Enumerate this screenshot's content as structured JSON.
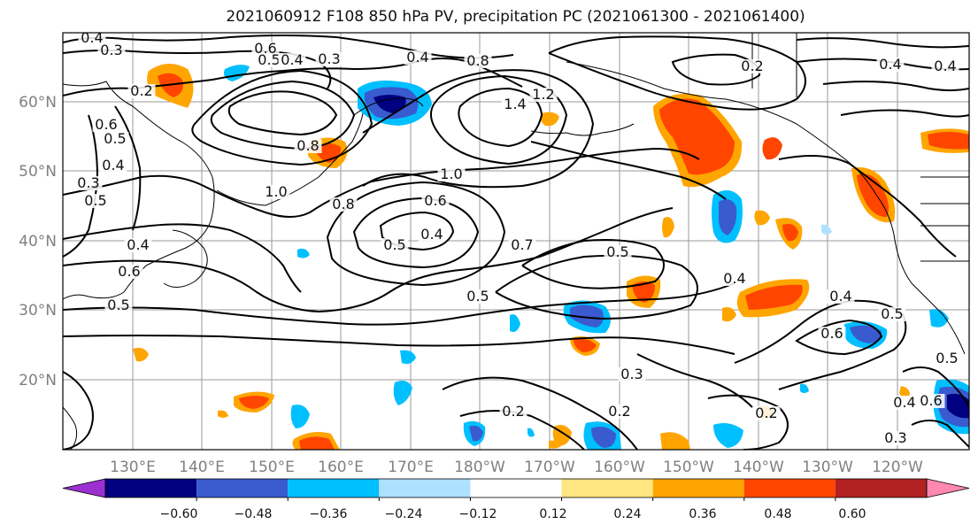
{
  "title": "2021060912 F108 850 hPa PV, precipitation PC (2021061300 - 2021061400)",
  "lat_labels": [
    "60°N",
    "50°N",
    "40°N",
    "30°N",
    "20°N"
  ],
  "lon_labels": [
    "130°E",
    "140°E",
    "150°E",
    "160°E",
    "170°E",
    "180°W",
    "170°W",
    "160°W",
    "150°W",
    "140°W",
    "130°W",
    "120°W"
  ],
  "contour_labels": [
    "0.4",
    "0.3",
    "0.6",
    "0.5",
    "0.4",
    "0.3",
    "0.4",
    "0.8",
    "1.2",
    "1.4",
    "0.2",
    "0.8",
    "0.6",
    "0.5",
    "0.4",
    "0.3",
    "0.2",
    "0.5",
    "0.5",
    "0.4",
    "0.6",
    "1.0",
    "0.8",
    "1.0",
    "0.6",
    "0.5",
    "0.4",
    "0.7",
    "0.5",
    "0.4",
    "0.5",
    "0.4",
    "0.6",
    "0.3",
    "0.2",
    "0.2",
    "0.2",
    "0.5",
    "0.4",
    "0.4",
    "0.5",
    "0.6",
    "0.4",
    "0.3"
  ],
  "colorbar": {
    "colors": [
      "#9b30d0",
      "#000080",
      "#3a5bcf",
      "#00bfff",
      "#b0e0ff",
      "#ffffff",
      "#ffe680",
      "#ffa500",
      "#ff4500",
      "#b22222",
      "#ff88b0"
    ],
    "tick_labels": [
      "−0.60",
      "−0.48",
      "−0.36",
      "−0.24",
      "−0.12",
      "0.12",
      "0.24",
      "0.36",
      "0.48",
      "0.60"
    ]
  }
}
